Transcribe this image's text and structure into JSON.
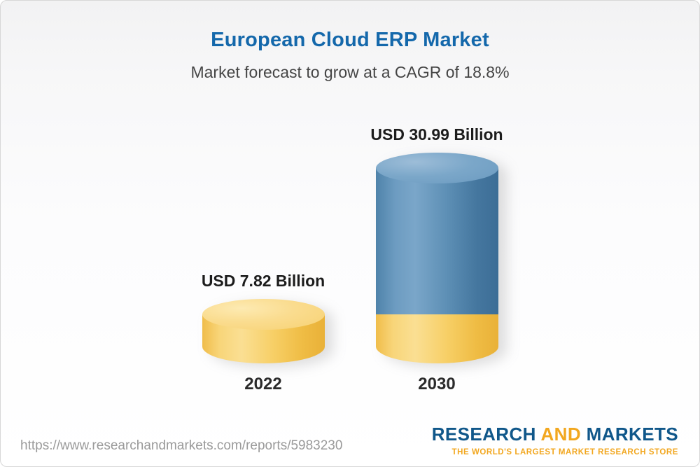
{
  "header": {
    "title": "European Cloud ERP Market",
    "subtitle": "Market forecast to grow at a CAGR of 18.8%"
  },
  "chart_data": {
    "type": "bar",
    "title": "European Cloud ERP Market",
    "subtitle": "Market forecast to grow at a CAGR of 18.8%",
    "categories": [
      "2022",
      "2030"
    ],
    "values": [
      7.82,
      30.99
    ],
    "value_labels": [
      "USD 7.82 Billion",
      "USD 30.99 Billion"
    ],
    "unit": "USD Billion",
    "cagr_percent": 18.8,
    "ylim": [
      0,
      32
    ],
    "grid": "off",
    "legend": "off",
    "bar_colors": [
      "#f6c95c",
      "#4d80a8"
    ],
    "style_note": "3D cylinders; 2030 bar has gold base segment equal to 2022 value"
  },
  "footer": {
    "url": "https://www.researchandmarkets.com/reports/5983230",
    "logo": {
      "research": "RESEARCH",
      "and": "AND",
      "markets": "MARKETS",
      "tagline": "THE WORLD'S LARGEST MARKET RESEARCH STORE"
    }
  },
  "colors": {
    "title_blue": "#1468ab",
    "cylinder_gold": "#f6c95c",
    "cylinder_blue": "#4d80a8",
    "logo_navy": "#10578a",
    "logo_gold": "#f2a71f"
  }
}
